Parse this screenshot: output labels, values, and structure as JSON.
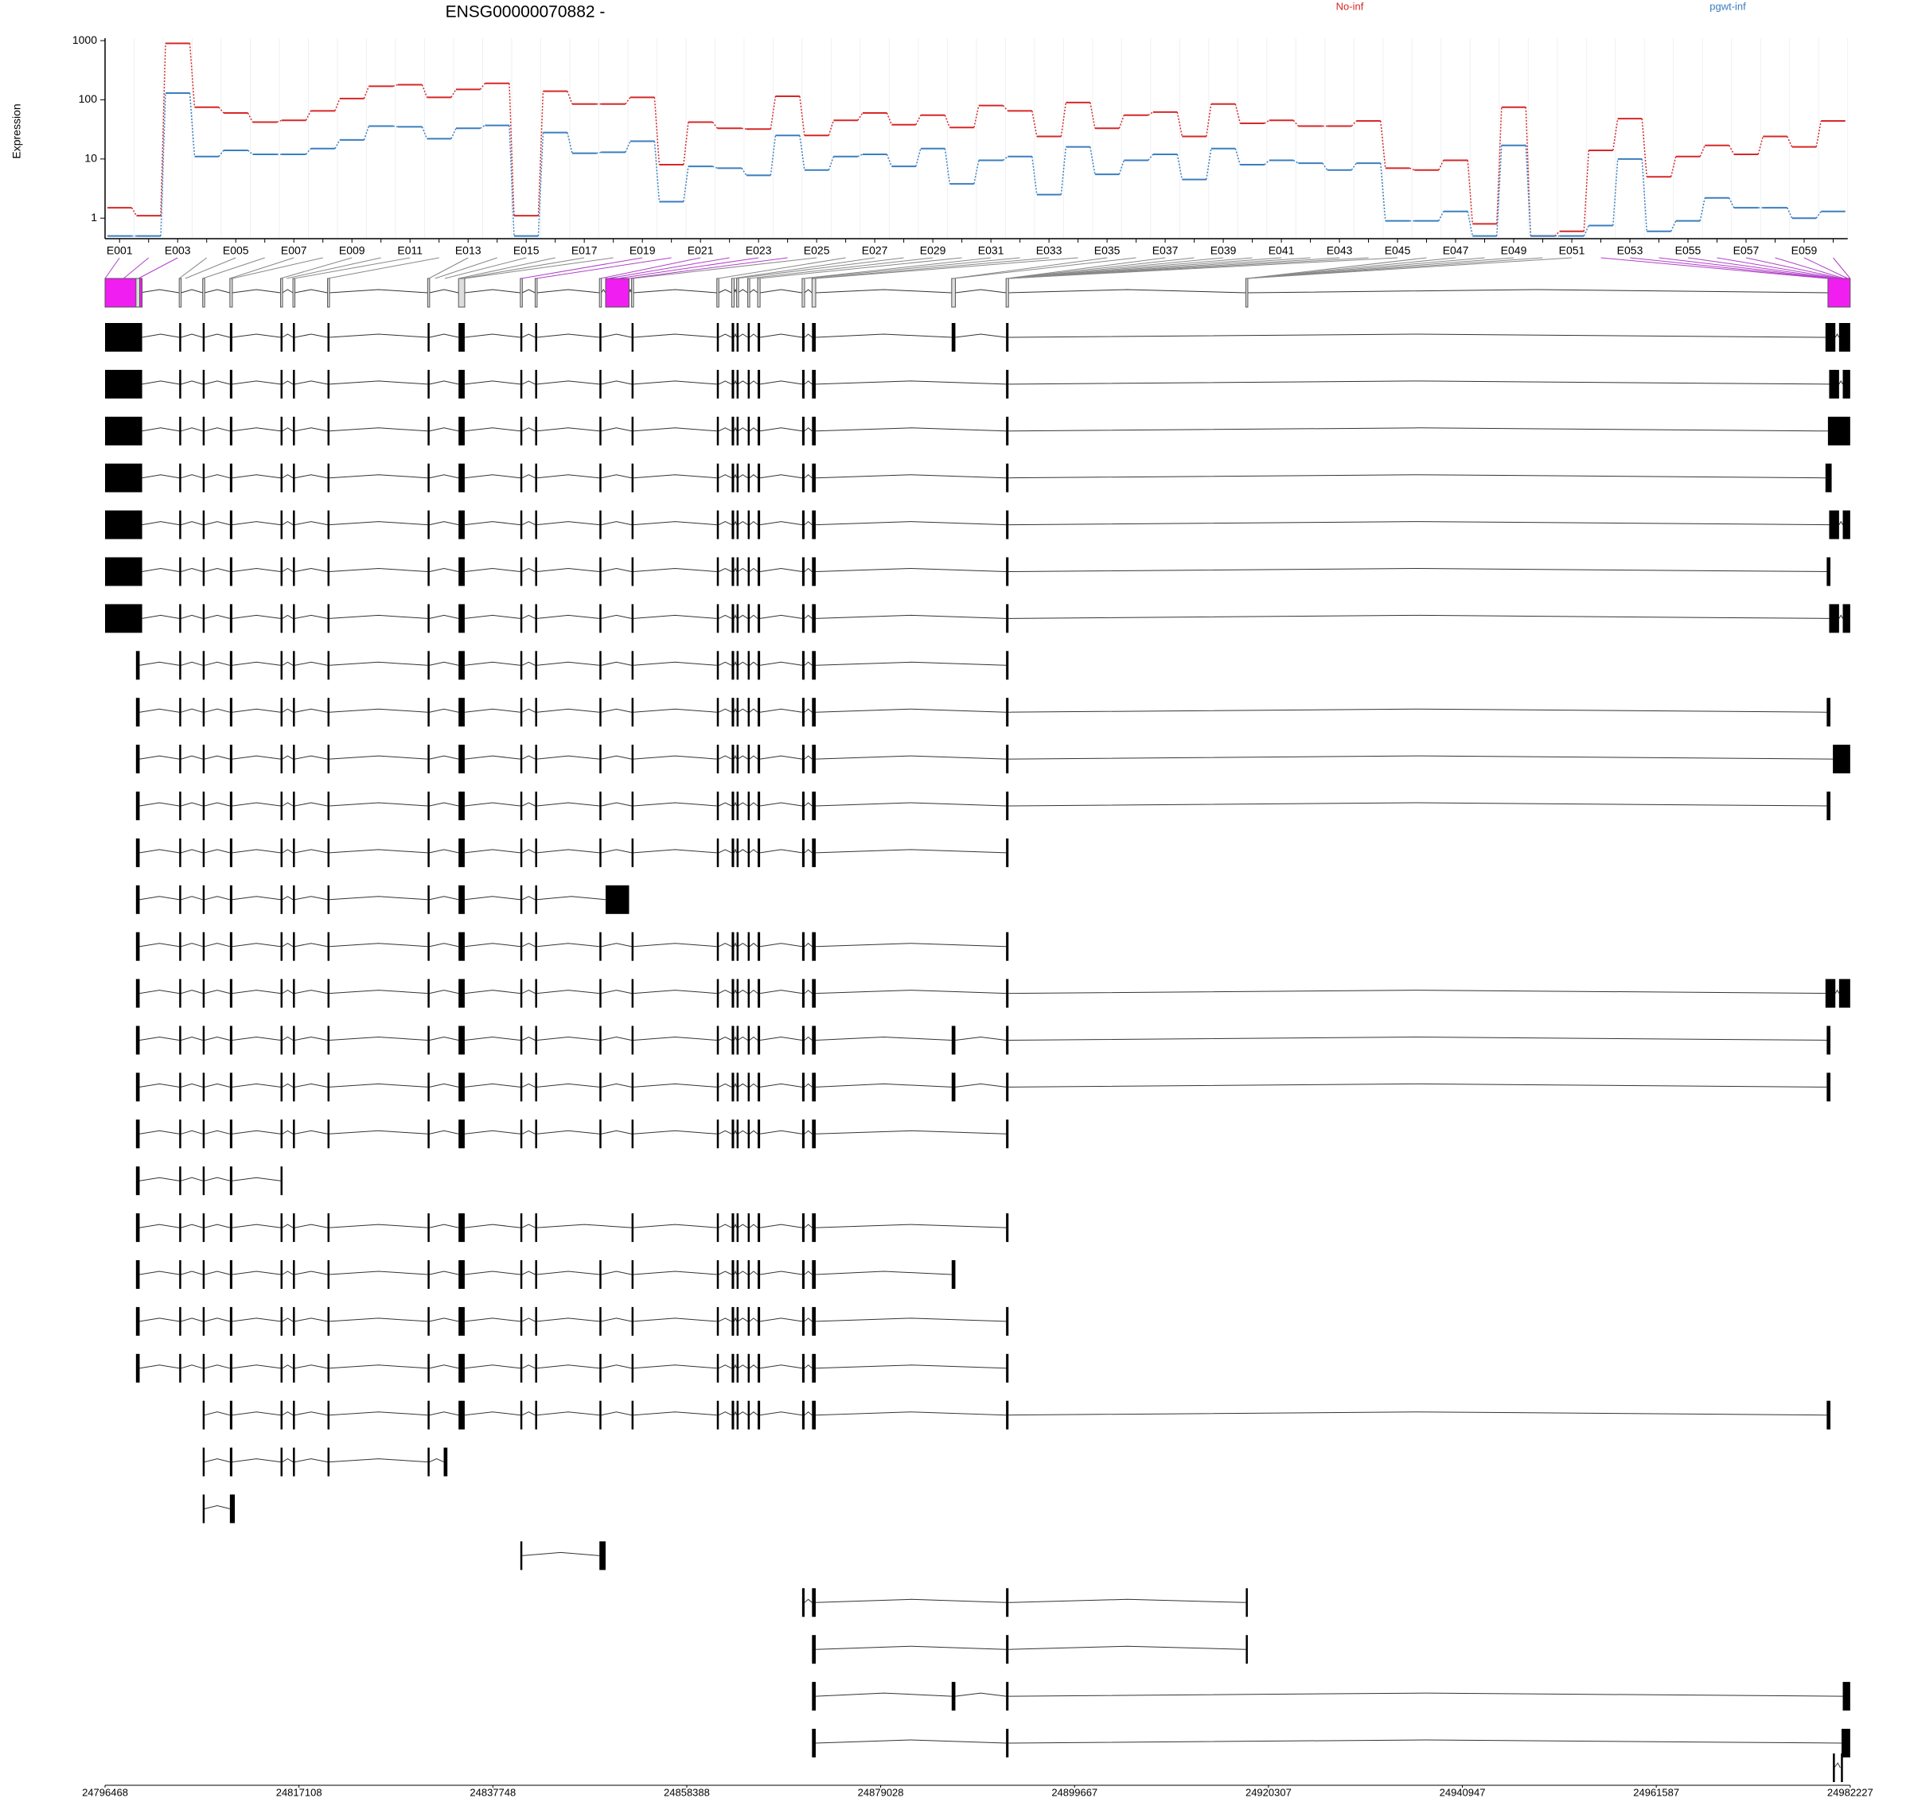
{
  "chart_data": {
    "type": "line",
    "title": "ENSG00000070882 -",
    "y_label": "Expression",
    "categories": [
      "E001",
      null,
      "E003",
      null,
      "E005",
      null,
      "E007",
      null,
      "E009",
      null,
      "E011",
      null,
      "E013",
      null,
      "E015",
      null,
      "E017",
      null,
      "E019",
      null,
      "E021",
      null,
      "E023",
      null,
      "E025",
      null,
      "E027",
      null,
      "E029",
      null,
      "E031",
      null,
      "E033",
      null,
      "E035",
      null,
      "E037",
      null,
      "E039",
      null,
      "E041",
      null,
      "E043",
      null,
      "E045",
      null,
      "E047",
      null,
      "E049",
      null,
      "E051",
      null,
      "E053",
      null,
      "E055",
      null,
      "E057",
      null,
      "E059",
      null
    ],
    "series": [
      {
        "name": "No-inf",
        "color": "#d62728",
        "values": [
          1.5,
          1.1,
          900,
          75,
          60,
          42,
          45,
          65,
          105,
          170,
          180,
          110,
          150,
          190,
          1.1,
          140,
          85,
          85,
          110,
          8,
          42,
          33,
          32,
          115,
          25,
          45,
          60,
          38,
          55,
          34,
          80,
          65,
          24,
          90,
          33,
          55,
          62,
          24,
          85,
          40,
          45,
          36,
          36,
          44,
          7,
          6.5,
          9.5,
          0.8,
          75,
          0.5,
          0.6,
          14,
          48,
          5,
          11,
          17,
          12,
          24,
          16,
          44
        ]
      },
      {
        "name": "pgwt-inf",
        "color": "#3a7ebf",
        "values": [
          0.5,
          0.5,
          130,
          11,
          14,
          12,
          12,
          15,
          21,
          36,
          35,
          22,
          33,
          37,
          0.5,
          28,
          12.5,
          13,
          20,
          1.9,
          7.5,
          7,
          5.3,
          25,
          6.5,
          11,
          12,
          7.5,
          15,
          3.8,
          9.5,
          11,
          2.5,
          16,
          5.5,
          9.5,
          12,
          4.5,
          15,
          8,
          9.5,
          8.5,
          6.5,
          8.5,
          0.9,
          0.9,
          1.3,
          0.5,
          17,
          0.5,
          0.5,
          0.75,
          10,
          0.6,
          0.9,
          2.2,
          1.5,
          1.5,
          1.0,
          1.3
        ]
      }
    ],
    "ylim": [
      0.45,
      1100
    ],
    "yticks": [
      1,
      10,
      100,
      1000
    ],
    "log_y": true,
    "grid": true,
    "xlim": [
      24796468,
      24982227
    ],
    "xticks": [
      24796468,
      24817108,
      24837748,
      24858388,
      24879028,
      24899667,
      24920307,
      24940947,
      24961587,
      24982227
    ]
  }
}
